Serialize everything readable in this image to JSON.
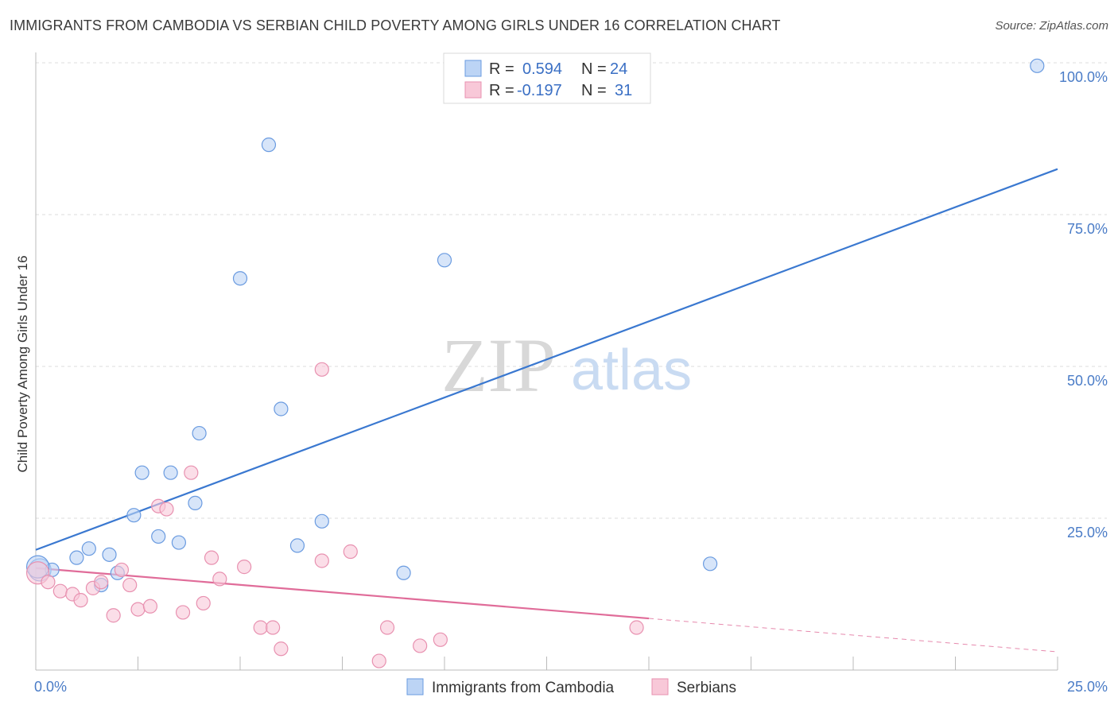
{
  "chart_data": {
    "type": "scatter",
    "title": "IMMIGRANTS FROM CAMBODIA VS SERBIAN CHILD POVERTY AMONG GIRLS UNDER 16 CORRELATION CHART",
    "source": "Source: ZipAtlas.com",
    "ylabel": "Child Poverty Among Girls Under 16",
    "xlim": [
      0,
      25
    ],
    "ylim": [
      0,
      100
    ],
    "x_tick_labels": [
      {
        "value": 0,
        "label": "0.0%"
      },
      {
        "value": 25,
        "label": "25.0%"
      }
    ],
    "y_tick_labels": [
      {
        "value": 25,
        "label": "25.0%"
      },
      {
        "value": 50,
        "label": "50.0%"
      },
      {
        "value": 75,
        "label": "75.0%"
      },
      {
        "value": 100,
        "label": "100.0%"
      }
    ],
    "watermark": {
      "zip": "ZIP",
      "atlas": "atlas"
    },
    "series": [
      {
        "name": "Immigrants from Cambodia",
        "color": "#6a9be0",
        "fill": "#bcd4f5",
        "line_color": "#3a78d0",
        "R": "0.594",
        "N": "24",
        "trend": {
          "x0": 0,
          "y0": 19.8,
          "x1": 25,
          "y1": 82.5
        },
        "points": [
          [
            0.1,
            16.5
          ],
          [
            0.4,
            16.5
          ],
          [
            1.0,
            18.5
          ],
          [
            1.3,
            20.0
          ],
          [
            1.6,
            14.0
          ],
          [
            1.8,
            19.0
          ],
          [
            2.0,
            16.0
          ],
          [
            2.4,
            25.5
          ],
          [
            2.6,
            32.5
          ],
          [
            3.0,
            22.0
          ],
          [
            3.3,
            32.5
          ],
          [
            3.5,
            21.0
          ],
          [
            3.9,
            27.5
          ],
          [
            4.0,
            39.0
          ],
          [
            5.0,
            64.5
          ],
          [
            5.7,
            86.5
          ],
          [
            6.0,
            43.0
          ],
          [
            6.4,
            20.5
          ],
          [
            7.0,
            24.5
          ],
          [
            9.0,
            16.0
          ],
          [
            10.0,
            67.5
          ],
          [
            16.5,
            17.5
          ],
          [
            24.5,
            99.5
          ],
          [
            0.05,
            17.0
          ]
        ]
      },
      {
        "name": "Serbians",
        "color": "#e891b0",
        "fill": "#f8c8d8",
        "line_color": "#e06c99",
        "R": "-0.197",
        "N": "31",
        "trend": {
          "x0": 0,
          "y0": 16.8,
          "x1": 15,
          "y1": 8.5
        },
        "trend_dash": {
          "x0": 15,
          "y0": 8.5,
          "x1": 25,
          "y1": 3.0
        },
        "points": [
          [
            0.05,
            16.0
          ],
          [
            0.3,
            14.5
          ],
          [
            0.6,
            13.0
          ],
          [
            0.9,
            12.5
          ],
          [
            1.1,
            11.5
          ],
          [
            1.4,
            13.5
          ],
          [
            1.6,
            14.5
          ],
          [
            1.9,
            9.0
          ],
          [
            2.1,
            16.5
          ],
          [
            2.3,
            14.0
          ],
          [
            2.5,
            10.0
          ],
          [
            2.8,
            10.5
          ],
          [
            3.0,
            27.0
          ],
          [
            3.2,
            26.5
          ],
          [
            3.6,
            9.5
          ],
          [
            3.8,
            32.5
          ],
          [
            4.1,
            11.0
          ],
          [
            4.3,
            18.5
          ],
          [
            4.5,
            15.0
          ],
          [
            5.1,
            17.0
          ],
          [
            5.5,
            7.0
          ],
          [
            5.8,
            7.0
          ],
          [
            6.0,
            3.5
          ],
          [
            7.0,
            49.5
          ],
          [
            7.0,
            18.0
          ],
          [
            7.7,
            19.5
          ],
          [
            8.4,
            1.5
          ],
          [
            8.6,
            7.0
          ],
          [
            9.4,
            4.0
          ],
          [
            9.9,
            5.0
          ],
          [
            14.7,
            7.0
          ]
        ]
      }
    ]
  },
  "legend": {
    "r_label": "R =",
    "n_label": "N ="
  }
}
